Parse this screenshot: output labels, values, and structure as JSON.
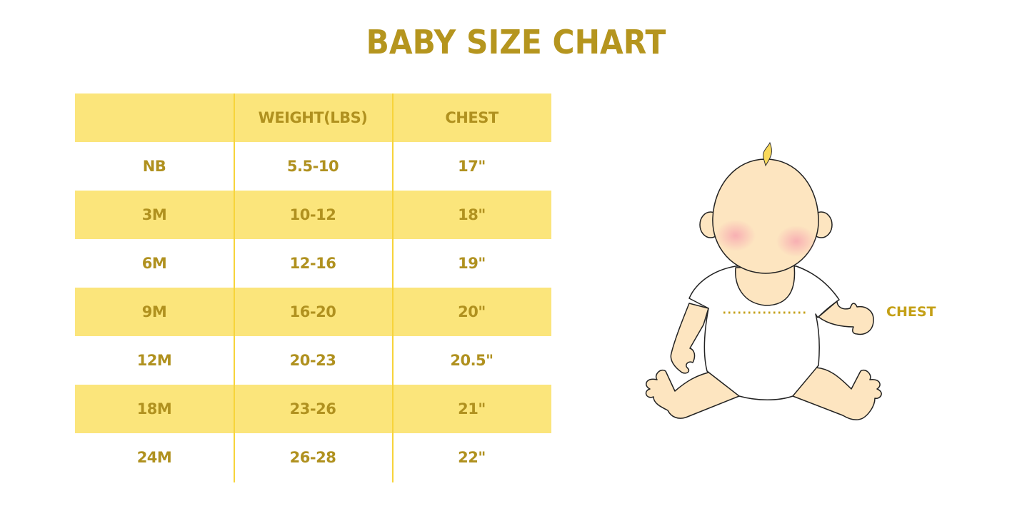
{
  "title": "BABY SIZE CHART",
  "table": {
    "headers": [
      "",
      "WEIGHT(LBS)",
      "CHEST"
    ],
    "rows": [
      [
        "NB",
        "5.5-10",
        "17\""
      ],
      [
        "3M",
        "10-12",
        "18\""
      ],
      [
        "6M",
        "12-16",
        "19\""
      ],
      [
        "9M",
        "16-20",
        "20\""
      ],
      [
        "12M",
        "20-23",
        "20.5\""
      ],
      [
        "18M",
        "23-26",
        "21\""
      ],
      [
        "24M",
        "26-28",
        "22\""
      ]
    ]
  },
  "illustration": {
    "chest_label": "CHEST"
  },
  "colors": {
    "text": "#b0911f",
    "stripe": "#fbe57b",
    "divider": "#f7d43a",
    "skin": "#fde5c0"
  }
}
